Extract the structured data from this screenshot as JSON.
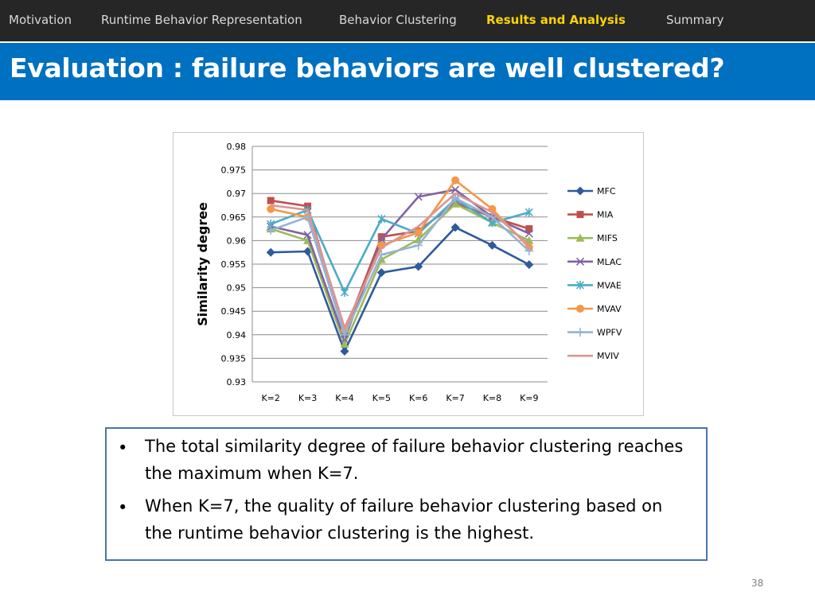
{
  "nav": {
    "items": [
      {
        "label": "Motivation",
        "active": false
      },
      {
        "label": "Runtime Behavior Representation",
        "active": false
      },
      {
        "label": "Behavior Clustering",
        "active": false
      },
      {
        "label": "Results and Analysis",
        "active": true
      },
      {
        "label": "Summary",
        "active": false
      }
    ],
    "active_color": "#ffd400"
  },
  "slide": {
    "title": "Evaluation : failure behaviors are well clustered?",
    "title_bar_color": "#0070c0",
    "page_number": "38"
  },
  "bullets": [
    "The total similarity degree of failure behavior clustering reaches the maximum when K=7.",
    "When K=7, the quality of failure behavior clustering based on the runtime behavior clustering is the highest."
  ],
  "chart_data": {
    "type": "line",
    "title": "",
    "xlabel": "",
    "ylabel": "Similarity degree",
    "categories": [
      "K=2",
      "K=3",
      "K=4",
      "K=5",
      "K=6",
      "K=7",
      "K=8",
      "K=9"
    ],
    "ylim": [
      0.93,
      0.98
    ],
    "yticks": [
      "0.98",
      "0.975",
      "0.97",
      "0.965",
      "0.96",
      "0.955",
      "0.95",
      "0.945",
      "0.94",
      "0.935",
      "0.93"
    ],
    "grid": true,
    "legend_position": "right",
    "series": [
      {
        "name": "MFC",
        "color": "#2e5b9a",
        "marker": "diamond",
        "values": [
          0.9575,
          0.9577,
          0.9365,
          0.9532,
          0.9545,
          0.9628,
          0.959,
          0.9549
        ]
      },
      {
        "name": "MIA",
        "color": "#c0504d",
        "marker": "square",
        "values": [
          0.9685,
          0.9673,
          0.9405,
          0.9608,
          0.962,
          0.968,
          0.965,
          0.9625
        ]
      },
      {
        "name": "MIFS",
        "color": "#9bbb59",
        "marker": "triangle",
        "values": [
          0.9625,
          0.96,
          0.938,
          0.956,
          0.9602,
          0.9678,
          0.9638,
          0.96
        ]
      },
      {
        "name": "MLAC",
        "color": "#8064a2",
        "marker": "x",
        "values": [
          0.963,
          0.9612,
          0.939,
          0.9603,
          0.9693,
          0.9708,
          0.965,
          0.9615
        ]
      },
      {
        "name": "MVAE",
        "color": "#4bacc6",
        "marker": "star",
        "values": [
          0.9635,
          0.9665,
          0.949,
          0.9646,
          0.9615,
          0.9688,
          0.9638,
          0.966
        ]
      },
      {
        "name": "MVAV",
        "color": "#f79646",
        "marker": "circle",
        "values": [
          0.9667,
          0.965,
          0.941,
          0.959,
          0.9617,
          0.9728,
          0.9667,
          0.9585
        ]
      },
      {
        "name": "WPFV",
        "color": "#95b3d7",
        "marker": "plus",
        "values": [
          0.9622,
          0.965,
          0.94,
          0.957,
          0.959,
          0.969,
          0.965,
          0.9578
        ]
      },
      {
        "name": "MVIV",
        "color": "#d99694",
        "marker": "none",
        "values": [
          0.9675,
          0.9665,
          0.9415,
          0.9585,
          0.963,
          0.97,
          0.966,
          0.959
        ]
      }
    ]
  }
}
